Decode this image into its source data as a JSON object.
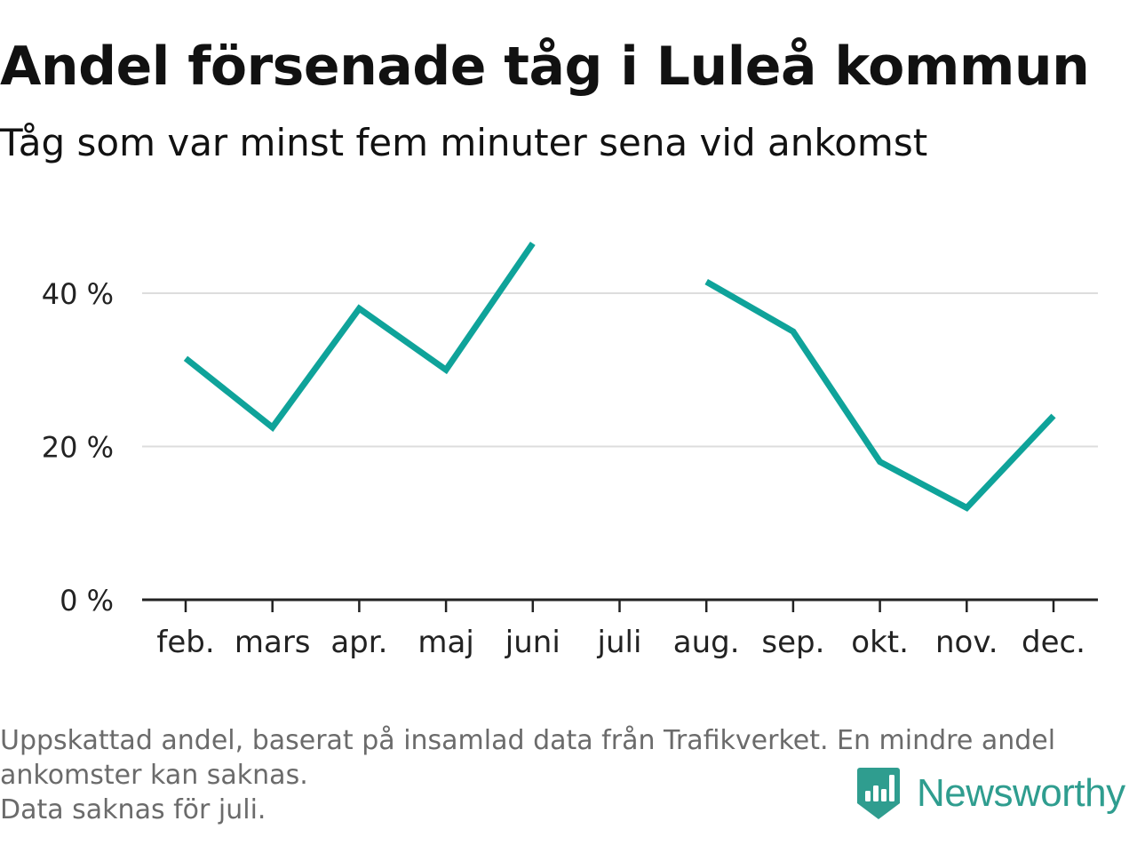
{
  "title": "Andel försenade tåg i Luleå kommun",
  "subtitle": "Tåg som var minst fem minuter sena vid ankomst",
  "footnote": {
    "line1": "Uppskattad andel, baserat på insamlad data från Trafikverket. En mindre andel",
    "line2": "ankomster kan saknas.",
    "line3": "Data saknas för juli."
  },
  "brand": {
    "name": "Newsworthy",
    "icon": "bar-chart-badge-icon",
    "color": "#2f9d8f"
  },
  "chart_data": {
    "type": "line",
    "categories": [
      "feb.",
      "mars",
      "apr.",
      "maj",
      "juni",
      "juli",
      "aug.",
      "sep.",
      "okt.",
      "nov.",
      "dec."
    ],
    "series": [
      {
        "values": [
          31.5,
          22.5,
          38,
          30,
          46.5,
          null,
          41.5,
          35,
          18,
          12,
          24
        ]
      }
    ],
    "y_ticks": [
      0,
      20,
      40
    ],
    "y_tick_labels": [
      "0 %",
      "20 %",
      "40 %"
    ],
    "ylim": [
      0,
      46.5
    ],
    "grid": true,
    "line_color": "#0fa39a",
    "grid_color": "#dddddd"
  }
}
